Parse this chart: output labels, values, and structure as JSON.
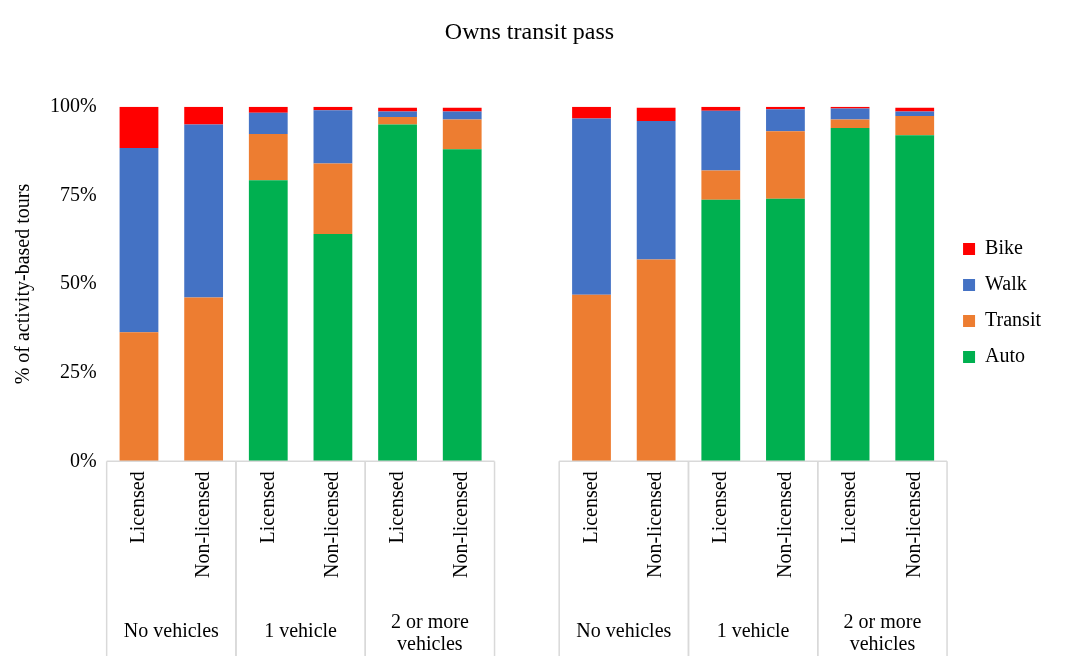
{
  "chart_data": {
    "type": "bar",
    "stacked": true,
    "title": "Owns transit pass",
    "ylabel": "% of activity-based tours",
    "categories": [
      "Licensed",
      "Non-licensed",
      "Licensed",
      "Non-licensed",
      "Licensed",
      "Non-licensed",
      null,
      "Licensed",
      "Non-licensed",
      "Licensed",
      "Non-licensed",
      "Licensed",
      "Non-licensed"
    ],
    "series": [
      {
        "name": "Auto",
        "color": "#00b050",
        "values": [
          0,
          0,
          79.3,
          64.1,
          95.0,
          88.0,
          null,
          0,
          0,
          73.8,
          74.1,
          94.0,
          92.0
        ]
      },
      {
        "name": "Transit",
        "color": "#ed7d31",
        "values": [
          36.4,
          46.2,
          13.0,
          19.9,
          2.1,
          8.4,
          null,
          47.0,
          56.9,
          8.2,
          19.0,
          2.4,
          5.4
        ]
      },
      {
        "name": "Walk",
        "color": "#4472c4",
        "values": [
          52.0,
          48.8,
          6.0,
          15.0,
          1.6,
          2.3,
          null,
          49.7,
          39.1,
          16.9,
          6.2,
          3.1,
          1.3
        ]
      },
      {
        "name": "Bike",
        "color": "#ff0000",
        "values": [
          11.6,
          5.0,
          1.7,
          1.0,
          1.0,
          1.0,
          null,
          3.3,
          3.7,
          1.1,
          0.7,
          0.5,
          1.0
        ]
      }
    ],
    "ylim": [
      0,
      100
    ],
    "yticks": [
      {
        "value": 0,
        "label": "0%"
      },
      {
        "value": 25,
        "label": "25%"
      },
      {
        "value": 50,
        "label": "50%"
      },
      {
        "value": 75,
        "label": "75%"
      },
      {
        "value": 100,
        "label": "100%"
      }
    ],
    "legend": "right",
    "annotations": [
      "No vehicles",
      "1 vehicle",
      "2 or more vehicles",
      "No vehicles",
      "1 vehicle",
      "2 or more vehicles"
    ]
  }
}
